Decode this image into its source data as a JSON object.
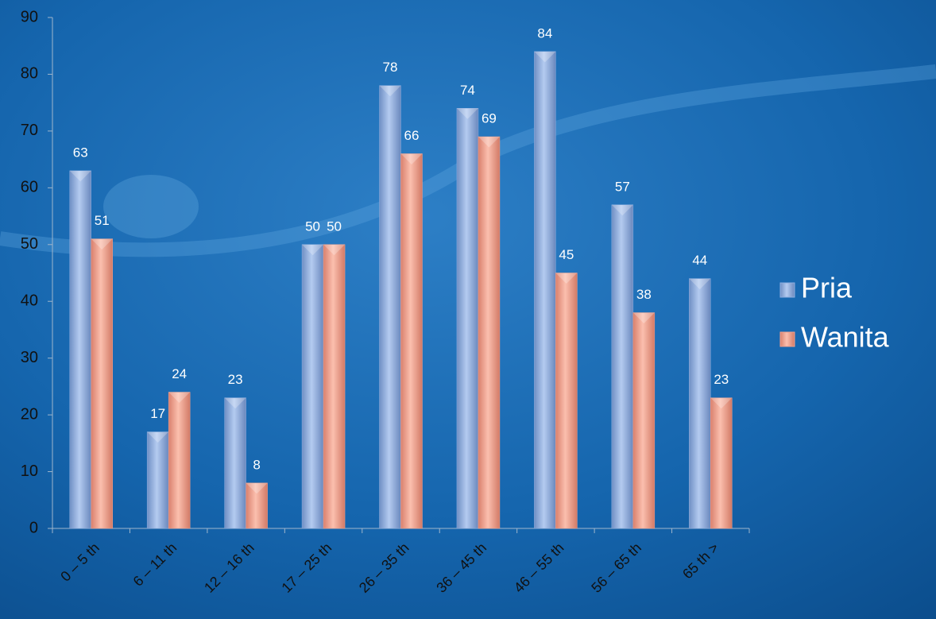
{
  "chart_data": {
    "type": "bar",
    "categories": [
      "0 – 5 th",
      "6 – 11 th",
      "12 – 16 th",
      "17 – 25 th",
      "26 – 35 th",
      "36 – 45 th",
      "46 – 55 th",
      "56 – 65 th",
      "65 th >"
    ],
    "series": [
      {
        "name": "Pria",
        "color": "#8eaee0",
        "values": [
          63,
          17,
          23,
          50,
          78,
          74,
          84,
          57,
          44
        ]
      },
      {
        "name": "Wanita",
        "color": "#f2a08c",
        "values": [
          51,
          24,
          8,
          50,
          66,
          69,
          45,
          38,
          23
        ]
      }
    ],
    "ylim": [
      0,
      90
    ],
    "yticks": [
      0,
      10,
      20,
      30,
      40,
      50,
      60,
      70,
      80,
      90
    ],
    "legend": "right"
  }
}
